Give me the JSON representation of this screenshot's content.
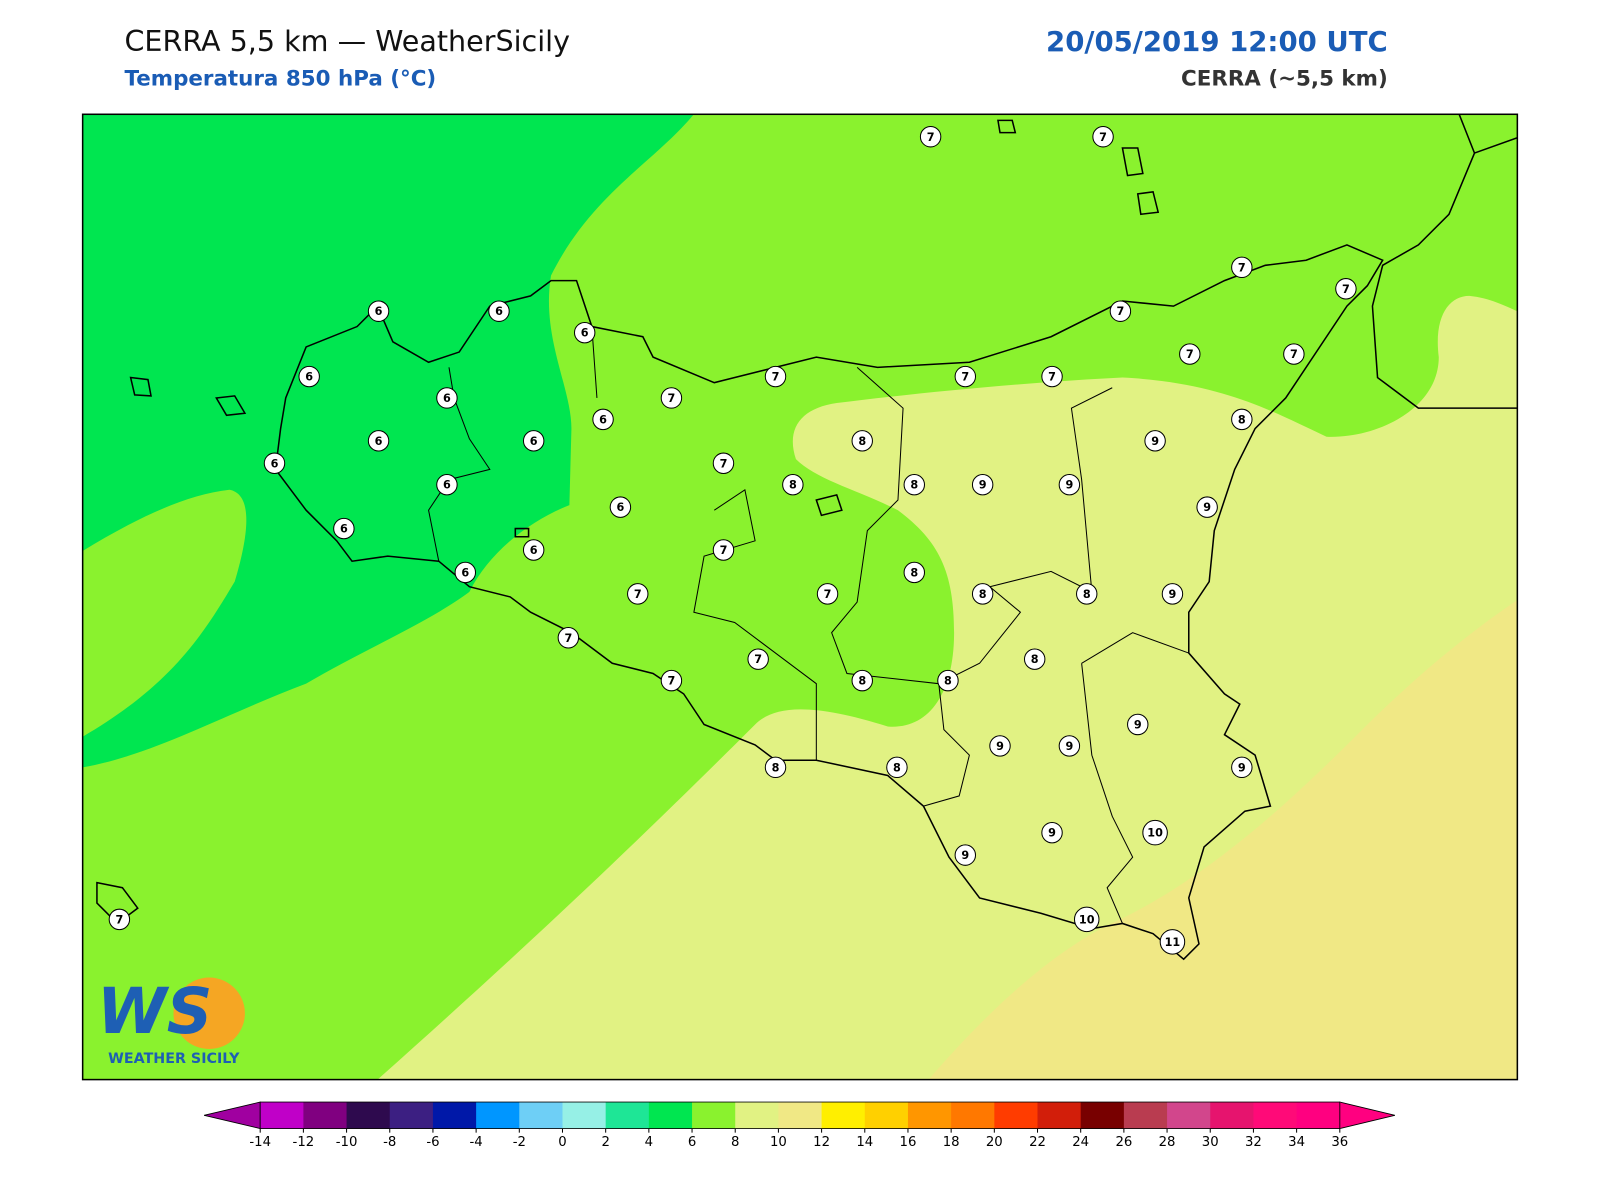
{
  "header": {
    "title": "CERRA 5,5 km — WeatherSicily",
    "subtitle": "Temperatura 850 hPa (°C)",
    "datetime": "20/05/2019 12:00 UTC",
    "model": "CERRA (~5,5 km)"
  },
  "station_values": [
    7,
    7,
    7,
    7,
    6,
    6,
    6,
    7,
    6,
    7,
    7,
    7,
    7,
    7,
    6,
    7,
    6,
    8,
    6,
    6,
    8,
    9,
    6,
    7,
    6,
    8,
    8,
    9,
    9,
    6,
    9,
    6,
    6,
    7,
    6,
    8,
    7,
    7,
    8,
    8,
    9,
    7,
    8,
    7,
    7,
    8,
    8,
    9,
    9,
    9,
    8,
    8,
    9,
    9,
    10,
    9,
    7,
    10,
    11
  ],
  "colorbar": {
    "ticks": [
      -14,
      -12,
      -10,
      -8,
      -6,
      -4,
      -2,
      0,
      2,
      4,
      6,
      8,
      10,
      12,
      14,
      16,
      18,
      20,
      22,
      24,
      26,
      28,
      30,
      32,
      34,
      36
    ],
    "colors": [
      "#c000c8",
      "#800080",
      "#2e0a4e",
      "#3c1f82",
      "#0018a8",
      "#0096ff",
      "#6ecff6",
      "#96f0e6",
      "#1ee696",
      "#00e650",
      "#8af22e",
      "#e1f283",
      "#f0e885",
      "#ffef00",
      "#ffd000",
      "#ff9600",
      "#ff7800",
      "#ff3c00",
      "#d21e0a",
      "#780000",
      "#b93c50",
      "#d2468c",
      "#e6146e",
      "#ff0a78",
      "#ff0080"
    ],
    "under_color": "#a000a0",
    "over_color": "#ff0080"
  },
  "logo": {
    "mark": "WS",
    "name": "WEATHER SICILY"
  }
}
